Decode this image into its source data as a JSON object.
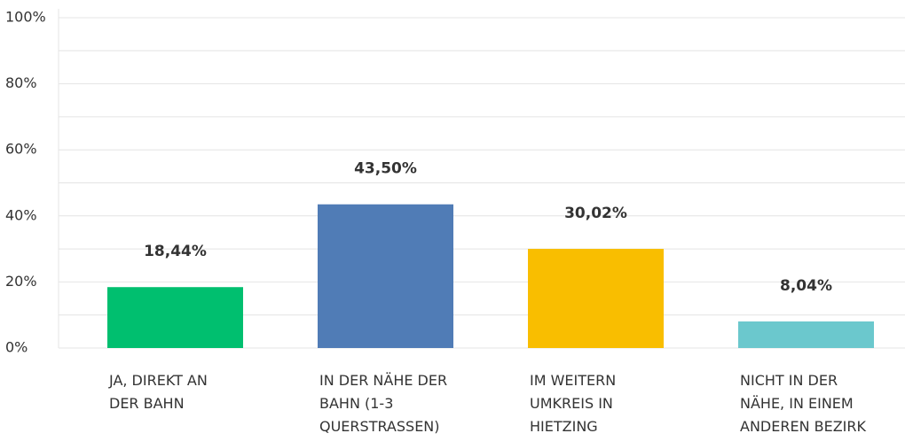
{
  "chart_data": {
    "type": "bar",
    "categories": [
      "JA, DIREKT AN DER BAHN",
      "IN DER NÄHE DER BAHN (1-3 QUERSTRASSEN)",
      "IM WEITERN UMKREIS IN HIETZING",
      "NICHT IN DER NÄHE, IN EINEM ANDEREN BEZIRK"
    ],
    "values": [
      18.44,
      43.5,
      30.02,
      8.04
    ],
    "value_labels": [
      "18,44%",
      "43,50%",
      "30,02%",
      "8,04%"
    ],
    "colors": [
      "#00bf6f",
      "#507cb6",
      "#f9be00",
      "#6bc8cd"
    ],
    "ylim": [
      0,
      100
    ],
    "yticks": [
      {
        "value": 0,
        "label": "0%"
      },
      {
        "value": 20,
        "label": "20%"
      },
      {
        "value": 40,
        "label": "40%"
      },
      {
        "value": 60,
        "label": "60%"
      },
      {
        "value": 80,
        "label": "80%"
      },
      {
        "value": 100,
        "label": "100%"
      }
    ],
    "minor_yticks": [
      10,
      30,
      50,
      70,
      90
    ],
    "grid": true
  }
}
